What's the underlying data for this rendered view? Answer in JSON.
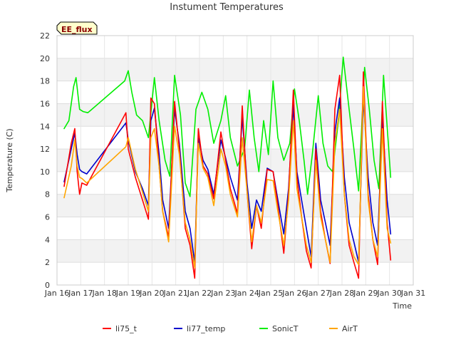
{
  "chart_data": {
    "type": "line",
    "title": "Instument Temperatures",
    "xlabel": "Time",
    "ylabel": "Temperature (C)",
    "badge": "EE_flux",
    "xlim": [
      16,
      31
    ],
    "ylim": [
      0,
      22
    ],
    "x_ticks": [
      16,
      17,
      18,
      19,
      20,
      21,
      22,
      23,
      24,
      25,
      26,
      27,
      28,
      29,
      30,
      31
    ],
    "x_tick_labels": [
      "Jan 16",
      "Jan 17",
      "Jan 18",
      "Jan 19",
      "Jan 20",
      "Jan 21",
      "Jan 22",
      "Jan 23",
      "Jan 24",
      "Jan 25",
      "Jan 26",
      "Jan 27",
      "Jan 28",
      "Jan 29",
      "Jan 30",
      "Jan 31"
    ],
    "y_ticks": [
      0,
      2,
      4,
      6,
      8,
      10,
      12,
      14,
      16,
      18,
      20,
      22
    ],
    "y_tick_labels": [
      "0",
      "2",
      "4",
      "6",
      "8",
      "10",
      "12",
      "14",
      "16",
      "18",
      "20",
      "22"
    ],
    "legend_position": "bottom-center",
    "series": [
      {
        "name": "li75_t",
        "color": "#ff0000",
        "x": [
          16.3,
          16.6,
          16.75,
          16.85,
          16.95,
          17.05,
          17.25,
          18.9,
          19.0,
          19.3,
          19.6,
          19.85,
          19.95,
          20.1,
          20.3,
          20.45,
          20.7,
          20.95,
          21.15,
          21.4,
          21.6,
          21.8,
          21.95,
          22.15,
          22.35,
          22.6,
          22.9,
          23.1,
          23.3,
          23.6,
          23.8,
          24.0,
          24.2,
          24.4,
          24.6,
          24.85,
          25.1,
          25.3,
          25.55,
          25.75,
          25.95,
          26.1,
          26.3,
          26.5,
          26.7,
          26.9,
          27.1,
          27.3,
          27.5,
          27.7,
          27.9,
          28.1,
          28.3,
          28.5,
          28.7,
          28.9,
          29.1,
          29.3,
          29.5,
          29.7,
          29.9,
          30.05
        ],
        "values": [
          8.7,
          12.5,
          13.8,
          10.0,
          8.0,
          9.0,
          8.8,
          15.2,
          12.0,
          9.5,
          7.5,
          5.8,
          16.5,
          16.0,
          10.5,
          6.5,
          4.2,
          16.2,
          12.0,
          5.0,
          3.5,
          0.6,
          13.8,
          10.5,
          9.8,
          7.6,
          13.5,
          11.0,
          8.5,
          6.3,
          15.8,
          8.3,
          3.2,
          7.0,
          5.0,
          10.2,
          10.0,
          7.0,
          2.8,
          8.0,
          17.2,
          9.5,
          6.0,
          3.0,
          1.5,
          12.0,
          6.5,
          4.0,
          1.9,
          15.5,
          18.5,
          8.0,
          3.5,
          2.0,
          0.6,
          18.8,
          8.0,
          4.0,
          1.8,
          16.2,
          5.5,
          2.2
        ]
      },
      {
        "name": "li77_temp",
        "color": "#0000cc",
        "x": [
          16.3,
          16.6,
          16.75,
          16.85,
          16.95,
          17.05,
          17.25,
          18.9,
          19.0,
          19.3,
          19.6,
          19.85,
          19.95,
          20.1,
          20.3,
          20.45,
          20.7,
          20.95,
          21.15,
          21.4,
          21.6,
          21.8,
          21.95,
          22.15,
          22.35,
          22.6,
          22.9,
          23.1,
          23.3,
          23.6,
          23.8,
          24.0,
          24.2,
          24.4,
          24.6,
          24.85,
          25.1,
          25.3,
          25.55,
          25.75,
          25.95,
          26.1,
          26.3,
          26.5,
          26.7,
          26.9,
          27.1,
          27.3,
          27.5,
          27.7,
          27.9,
          28.1,
          28.3,
          28.5,
          28.7,
          28.9,
          29.1,
          29.3,
          29.5,
          29.7,
          29.9,
          30.05
        ],
        "values": [
          9.1,
          12.0,
          13.4,
          11.5,
          10.2,
          10.0,
          9.8,
          14.3,
          12.8,
          10.0,
          8.5,
          7.0,
          14.5,
          15.6,
          11.5,
          7.5,
          5.0,
          15.5,
          12.5,
          6.5,
          5.0,
          2.0,
          13.0,
          11.0,
          10.2,
          8.0,
          12.8,
          11.2,
          9.5,
          7.5,
          14.8,
          9.0,
          5.0,
          7.5,
          6.5,
          10.3,
          10.0,
          7.5,
          4.5,
          8.5,
          15.8,
          10.0,
          7.5,
          5.0,
          2.5,
          12.5,
          7.5,
          5.5,
          3.5,
          13.5,
          16.5,
          9.5,
          5.5,
          3.8,
          2.0,
          16.5,
          9.5,
          5.5,
          3.5,
          14.8,
          7.5,
          4.5
        ]
      },
      {
        "name": "SonicT",
        "color": "#00ee00",
        "x": [
          16.3,
          16.5,
          16.7,
          16.8,
          16.95,
          17.1,
          17.3,
          18.85,
          19.0,
          19.15,
          19.35,
          19.6,
          19.85,
          20.1,
          20.3,
          20.55,
          20.75,
          20.95,
          21.2,
          21.4,
          21.6,
          21.85,
          22.1,
          22.35,
          22.6,
          22.9,
          23.1,
          23.3,
          23.6,
          23.9,
          24.1,
          24.3,
          24.5,
          24.7,
          24.9,
          25.1,
          25.3,
          25.55,
          25.8,
          26.0,
          26.2,
          26.4,
          26.55,
          26.75,
          27.0,
          27.2,
          27.4,
          27.6,
          27.85,
          28.05,
          28.3,
          28.5,
          28.7,
          28.95,
          29.15,
          29.35,
          29.55,
          29.75,
          29.95,
          30.05
        ],
        "values": [
          13.8,
          14.5,
          17.5,
          18.3,
          15.5,
          15.3,
          15.2,
          18.0,
          18.9,
          17.0,
          15.0,
          14.5,
          13.0,
          18.3,
          14.5,
          11.0,
          9.6,
          18.5,
          15.0,
          9.0,
          7.8,
          15.5,
          17.0,
          15.5,
          12.5,
          14.5,
          16.7,
          13.0,
          10.5,
          12.0,
          17.2,
          13.0,
          10.0,
          14.5,
          11.5,
          18.0,
          13.0,
          11.0,
          12.5,
          17.3,
          14.5,
          11.0,
          8.0,
          11.5,
          16.7,
          12.5,
          10.5,
          10.0,
          14.5,
          20.1,
          15.5,
          12.0,
          8.3,
          19.2,
          15.5,
          11.0,
          8.5,
          18.5,
          12.5,
          9.5
        ]
      },
      {
        "name": "AirT",
        "color": "#ffa500",
        "x": [
          16.3,
          16.6,
          16.75,
          16.85,
          16.95,
          17.05,
          17.25,
          18.9,
          19.0,
          19.3,
          19.6,
          19.85,
          19.95,
          20.1,
          20.3,
          20.45,
          20.7,
          20.95,
          21.15,
          21.4,
          21.6,
          21.8,
          21.95,
          22.15,
          22.35,
          22.6,
          22.9,
          23.1,
          23.3,
          23.6,
          23.8,
          24.0,
          24.2,
          24.4,
          24.6,
          24.85,
          25.1,
          25.3,
          25.55,
          25.75,
          25.95,
          26.1,
          26.3,
          26.5,
          26.7,
          26.9,
          27.1,
          27.3,
          27.5,
          27.7,
          27.9,
          28.1,
          28.3,
          28.5,
          28.7,
          28.9,
          29.1,
          29.3,
          29.5,
          29.7,
          29.9,
          30.05
        ],
        "values": [
          7.7,
          10.5,
          12.8,
          10.5,
          9.5,
          9.4,
          9.0,
          12.2,
          13.0,
          10.2,
          8.2,
          6.5,
          13.0,
          13.8,
          10.5,
          6.5,
          3.8,
          14.0,
          11.5,
          5.5,
          4.0,
          1.5,
          12.5,
          10.3,
          9.5,
          7.0,
          12.0,
          10.5,
          8.0,
          6.0,
          13.0,
          8.3,
          3.8,
          7.0,
          5.5,
          9.3,
          9.2,
          6.5,
          3.5,
          7.5,
          14.5,
          8.5,
          6.0,
          3.5,
          2.0,
          11.0,
          6.0,
          4.0,
          2.0,
          12.5,
          15.5,
          8.0,
          4.0,
          2.5,
          1.8,
          17.5,
          7.5,
          4.0,
          2.5,
          13.8,
          5.0,
          3.7
        ]
      }
    ]
  }
}
